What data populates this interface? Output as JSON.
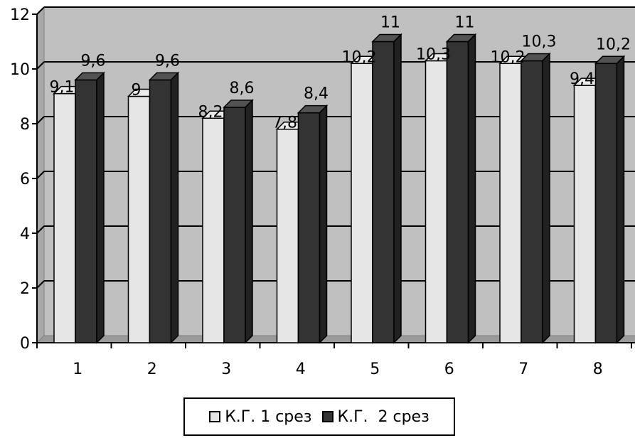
{
  "chart_data": {
    "type": "bar",
    "categories": [
      "1",
      "2",
      "3",
      "4",
      "5",
      "6",
      "7",
      "8"
    ],
    "series": [
      {
        "name": "К.Г. 1 срез",
        "values": [
          9.1,
          9,
          8.2,
          7.8,
          10.2,
          10.3,
          10.2,
          9.4
        ],
        "labels": [
          "9,1",
          "9",
          "8,2",
          "7,8",
          "10,2",
          "10,3",
          "10,2",
          "9,4"
        ],
        "color": "#e6e6e6"
      },
      {
        "name": "К.Г.  2 срез",
        "values": [
          9.6,
          9.6,
          8.6,
          8.4,
          11,
          11,
          10.3,
          10.2
        ],
        "labels": [
          "9,6",
          "9,6",
          "8,6",
          "8,4",
          "11",
          "11",
          "10,3",
          "10,2"
        ],
        "color": "#333333"
      }
    ],
    "ylim": [
      0,
      12
    ],
    "yticks": [
      "0",
      "2",
      "4",
      "6",
      "8",
      "10",
      "12"
    ],
    "grid": true,
    "legend_position": "bottom",
    "style": "3d-clustered-column",
    "wall_color": "#c0c0c0",
    "title": "",
    "xlabel": "",
    "ylabel": ""
  }
}
